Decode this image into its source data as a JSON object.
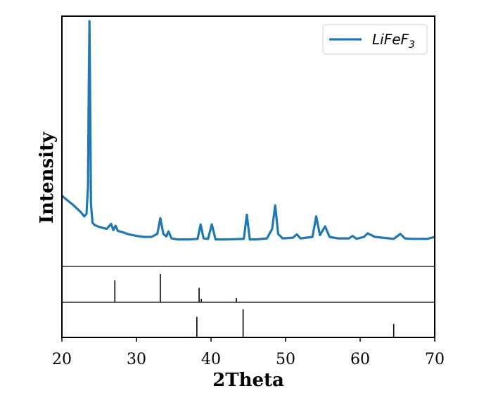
{
  "chart_data": {
    "type": "line",
    "xlabel": "2Theta",
    "ylabel": "Intensity",
    "xlim": [
      20,
      70
    ],
    "xticks": [
      20,
      30,
      40,
      50,
      60,
      70
    ],
    "ylim": [
      0,
      1
    ],
    "yticks_shown": false,
    "legend": {
      "placement": "top-right",
      "label_base": "LiFeF",
      "label_subscript": "3"
    },
    "series_color": "#1f77b4",
    "series": [
      {
        "name": "LiFeF3",
        "x": [
          20.0,
          20.5,
          21.0,
          21.5,
          22.0,
          22.5,
          23.0,
          23.3,
          23.5,
          23.6,
          23.7,
          23.8,
          23.9,
          24.1,
          24.4,
          25.0,
          26.0,
          26.6,
          26.9,
          27.2,
          27.5,
          28.0,
          29.0,
          30.0,
          31.0,
          32.0,
          32.8,
          33.2,
          33.6,
          34.0,
          34.3,
          34.7,
          35.5,
          37.0,
          38.2,
          38.6,
          39.0,
          39.6,
          40.1,
          40.6,
          42.0,
          44.4,
          44.8,
          45.2,
          46.0,
          47.5,
          48.2,
          48.6,
          49.0,
          49.6,
          51.0,
          51.5,
          52.0,
          53.6,
          54.1,
          54.6,
          55.3,
          55.9,
          57.0,
          58.5,
          59.0,
          59.5,
          60.5,
          61.0,
          61.5,
          62.0,
          63.0,
          64.5,
          65.4,
          66.0,
          67.0,
          68.0,
          69.0,
          70.0
        ],
        "y": [
          0.283,
          0.27,
          0.258,
          0.246,
          0.232,
          0.218,
          0.2,
          0.21,
          0.32,
          0.72,
          0.98,
          0.62,
          0.25,
          0.175,
          0.165,
          0.158,
          0.15,
          0.17,
          0.145,
          0.163,
          0.142,
          0.138,
          0.128,
          0.122,
          0.118,
          0.118,
          0.13,
          0.193,
          0.13,
          0.12,
          0.14,
          0.112,
          0.108,
          0.108,
          0.11,
          0.168,
          0.112,
          0.11,
          0.168,
          0.108,
          0.108,
          0.11,
          0.207,
          0.108,
          0.108,
          0.112,
          0.15,
          0.244,
          0.13,
          0.112,
          0.115,
          0.128,
          0.112,
          0.118,
          0.2,
          0.125,
          0.16,
          0.118,
          0.112,
          0.112,
          0.122,
          0.11,
          0.118,
          0.132,
          0.125,
          0.118,
          0.115,
          0.11,
          0.13,
          0.112,
          0.11,
          0.11,
          0.11,
          0.118
        ]
      }
    ],
    "reference_patterns": [
      {
        "x": [
          27.1,
          33.2,
          38.4,
          38.7,
          43.4
        ],
        "intensity": [
          0.78,
          1.0,
          0.51,
          0.12,
          0.15
        ]
      },
      {
        "x": [
          38.1,
          44.3,
          64.5
        ],
        "intensity": [
          0.73,
          1.0,
          0.48
        ]
      }
    ]
  }
}
